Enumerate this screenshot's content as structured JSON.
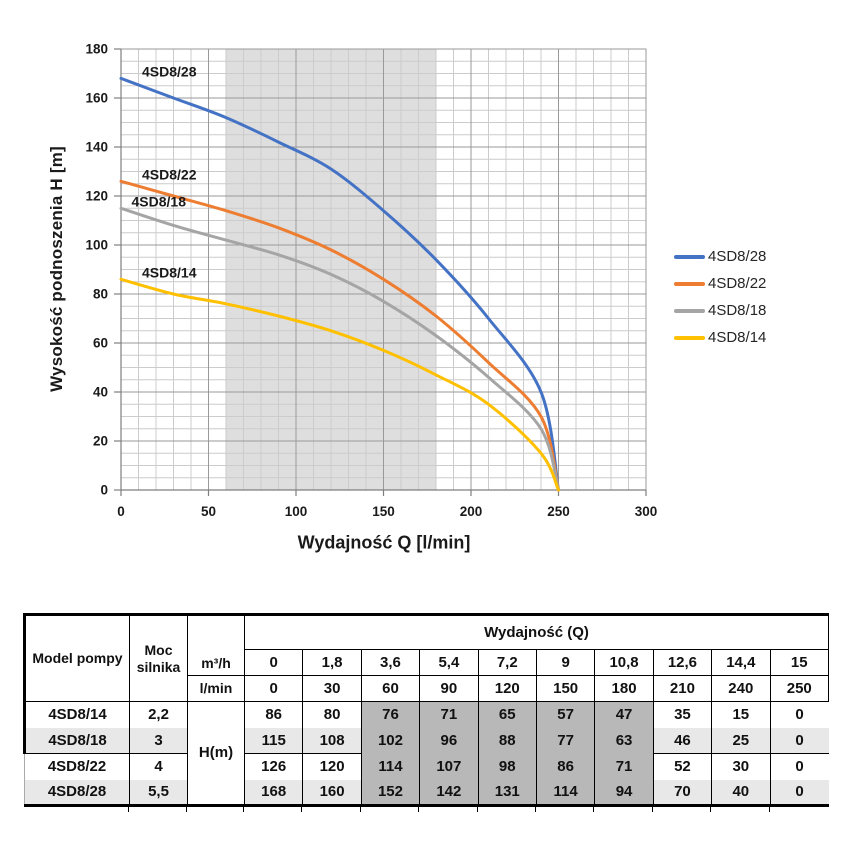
{
  "chart_data": {
    "type": "line",
    "title": "",
    "xlabel": "Wydajność Q [l/min]",
    "ylabel": "Wysokość podnoszenia H [m]",
    "xlim": [
      0,
      300
    ],
    "ylim": [
      0,
      180
    ],
    "x_major_step": 50,
    "x_minor_step": 10,
    "y_major_step": 20,
    "y_minor_step": 5,
    "x_ticks": [
      0,
      50,
      100,
      150,
      200,
      250,
      300
    ],
    "y_ticks": [
      0,
      20,
      40,
      60,
      80,
      100,
      120,
      140,
      160,
      180
    ],
    "grid": "on",
    "shaded_x_range": [
      60,
      180
    ],
    "legend_position": "right",
    "x": [
      0,
      30,
      60,
      90,
      120,
      150,
      180,
      210,
      240,
      250
    ],
    "series": [
      {
        "name": "4SD8/28",
        "color": "#4472C4",
        "label_q": 12,
        "values": [
          168,
          160,
          152,
          142,
          131,
          114,
          94,
          70,
          40,
          0
        ]
      },
      {
        "name": "4SD8/22",
        "color": "#ED7D31",
        "label_q": 12,
        "values": [
          126,
          120,
          114,
          107,
          98,
          86,
          71,
          52,
          30,
          0
        ]
      },
      {
        "name": "4SD8/18",
        "color": "#A5A5A5",
        "label_q": 6,
        "values": [
          115,
          108,
          102,
          96,
          88,
          77,
          63,
          46,
          25,
          0
        ]
      },
      {
        "name": "4SD8/14",
        "color": "#FFC000",
        "label_q": 12,
        "values": [
          86,
          80,
          76,
          71,
          65,
          57,
          47,
          35,
          15,
          0
        ]
      }
    ]
  },
  "table": {
    "header": {
      "model": "Model pompy",
      "power": "Moc silnika",
      "unit_m3h": "m³/h",
      "unit_lmin": "l/min",
      "q_title": "Wydajność (Q)",
      "h_label": "H(m)",
      "m3h_values": [
        "0",
        "1,8",
        "3,6",
        "5,4",
        "7,2",
        "9",
        "10,8",
        "12,6",
        "14,4",
        "15"
      ],
      "lmin_values": [
        "0",
        "30",
        "60",
        "90",
        "120",
        "150",
        "180",
        "210",
        "240",
        "250"
      ]
    },
    "rows": [
      {
        "model": "4SD8/14",
        "power": "2,2",
        "h": [
          "86",
          "80",
          "76",
          "71",
          "65",
          "57",
          "47",
          "35",
          "15",
          "0"
        ]
      },
      {
        "model": "4SD8/18",
        "power": "3",
        "h": [
          "115",
          "108",
          "102",
          "96",
          "88",
          "77",
          "63",
          "46",
          "25",
          "0"
        ]
      },
      {
        "model": "4SD8/22",
        "power": "4",
        "h": [
          "126",
          "120",
          "114",
          "107",
          "98",
          "86",
          "71",
          "52",
          "30",
          "0"
        ]
      },
      {
        "model": "4SD8/28",
        "power": "5,5",
        "h": [
          "168",
          "160",
          "152",
          "142",
          "131",
          "114",
          "94",
          "70",
          "40",
          "0"
        ]
      }
    ],
    "shaded_col_start": 2,
    "shaded_col_end": 6
  },
  "colors": {
    "band": "#dedede",
    "grid_minor": "#cccccc",
    "grid_major": "#999999",
    "axis": "#7f7f7f",
    "tick_text": "#1a1a1a",
    "table_shaded": "#b8b8b8",
    "table_stripe": "#e8e8e8",
    "table_border": "#000000"
  }
}
